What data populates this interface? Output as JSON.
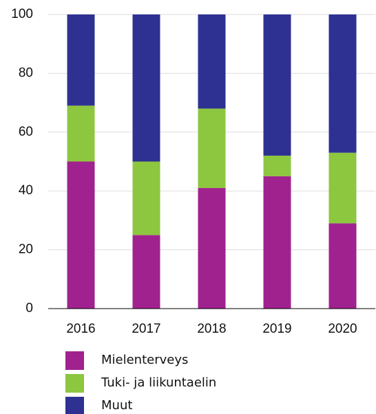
{
  "chart_data": {
    "type": "stacked_bar",
    "categories": [
      "2016",
      "2017",
      "2018",
      "2019",
      "2020"
    ],
    "series": [
      {
        "name": "Mielenterveys",
        "color": "#a0228f",
        "values": [
          50,
          25,
          41,
          45,
          29
        ]
      },
      {
        "name": "Tuki- ja liikuntaelin",
        "color": "#8dc63f",
        "values": [
          19,
          25,
          27,
          7,
          24
        ]
      },
      {
        "name": "Muut",
        "color": "#2e3192",
        "values": [
          31,
          50,
          32,
          48,
          47
        ]
      }
    ],
    "ylim": [
      0,
      100
    ],
    "yticks": [
      0,
      20,
      40,
      60,
      80,
      100
    ],
    "grid": true,
    "legend": "bottom"
  }
}
